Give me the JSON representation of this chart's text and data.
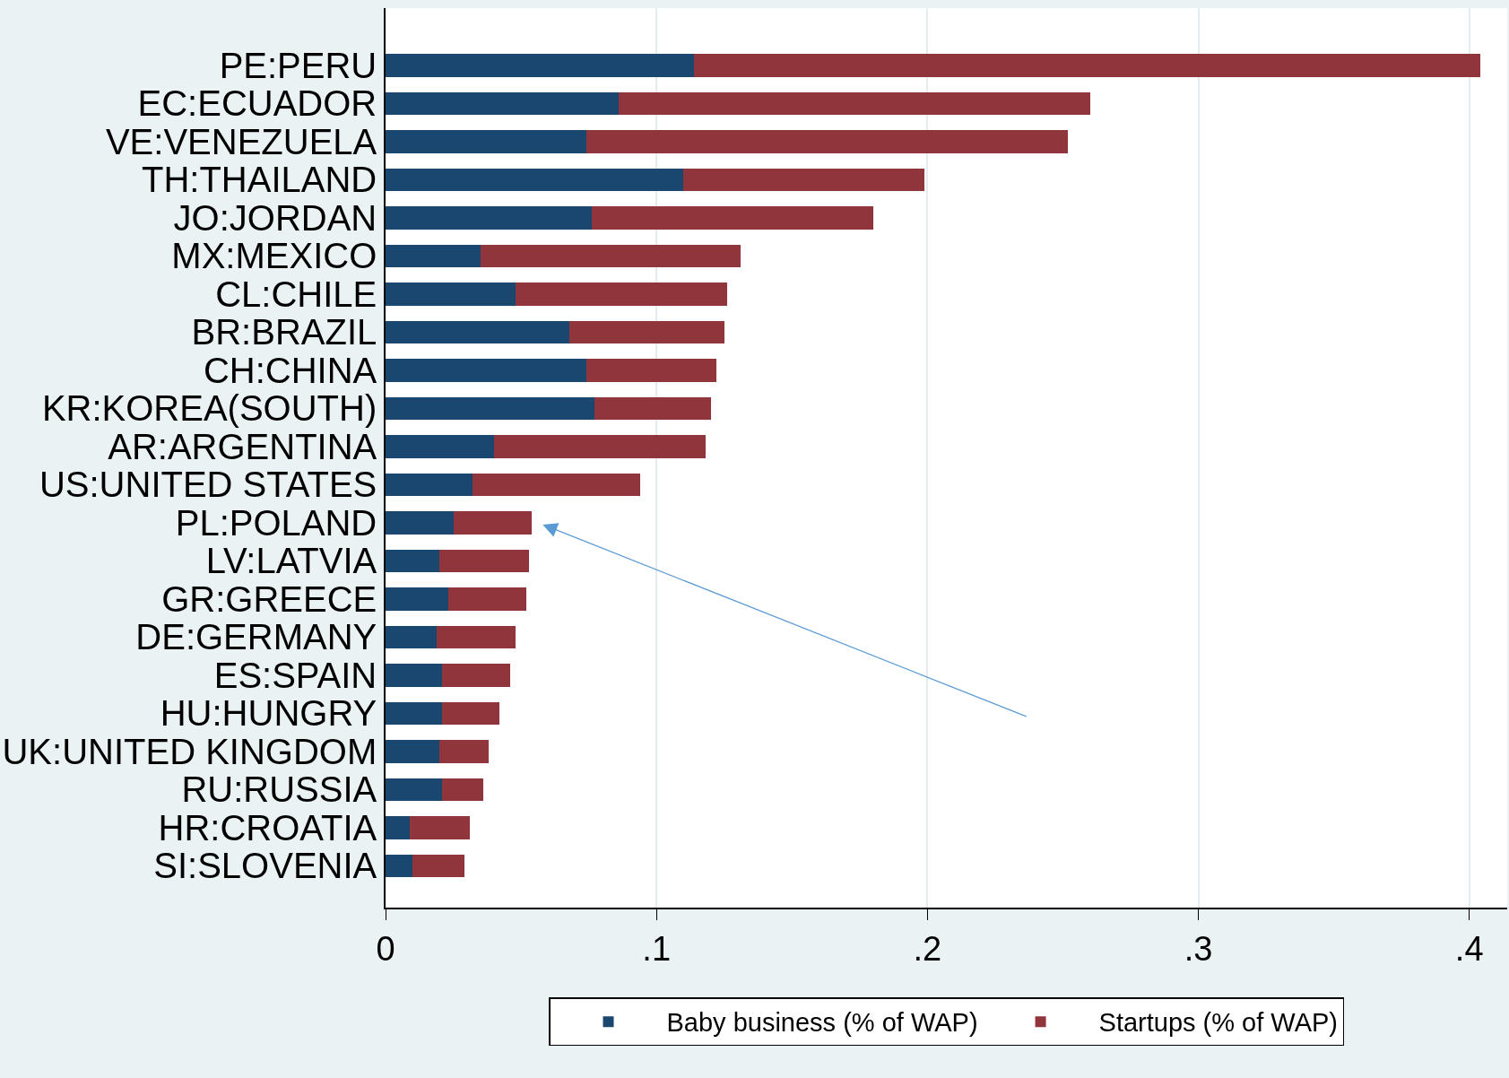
{
  "chart_data": {
    "type": "bar",
    "orientation": "horizontal",
    "stacked": true,
    "categories": [
      "PE:PERU",
      "EC:ECUADOR",
      "VE:VENEZUELA",
      "TH:THAILAND",
      "JO:JORDAN",
      "MX:MEXICO",
      "CL:CHILE",
      "BR:BRAZIL",
      "CH:CHINA",
      "KR:KOREA(SOUTH)",
      "AR:ARGENTINA",
      "US:UNITED STATES",
      "PL:POLAND",
      "LV:LATVIA",
      "GR:GREECE",
      "DE:GERMANY",
      "ES:SPAIN",
      "HU:HUNGRY",
      "UK:UNITED KINGDOM",
      "RU:RUSSIA",
      "HR:CROATIA",
      "SI:SLOVENIA"
    ],
    "series": [
      {
        "name": "Baby business (% of WAP)",
        "color": "#1a476f",
        "values": [
          0.114,
          0.086,
          0.074,
          0.11,
          0.076,
          0.035,
          0.048,
          0.068,
          0.074,
          0.077,
          0.04,
          0.032,
          0.025,
          0.02,
          0.023,
          0.019,
          0.021,
          0.021,
          0.02,
          0.021,
          0.009,
          0.01
        ]
      },
      {
        "name": "Startups (% of WAP)",
        "color": "#90353b",
        "values": [
          0.29,
          0.174,
          0.178,
          0.089,
          0.104,
          0.096,
          0.078,
          0.057,
          0.048,
          0.043,
          0.078,
          0.062,
          0.029,
          0.033,
          0.029,
          0.029,
          0.025,
          0.021,
          0.018,
          0.015,
          0.022,
          0.019
        ]
      }
    ],
    "xlim": [
      0,
      0.414
    ],
    "xticks": [
      0,
      {
        "value": 0.1,
        "label": ".1"
      },
      {
        "value": 0.2,
        "label": ".2"
      },
      {
        "value": 0.3,
        "label": ".3"
      },
      {
        "value": 0.4,
        "label": ".4"
      }
    ],
    "grid": "x",
    "legend": "bottom"
  }
}
